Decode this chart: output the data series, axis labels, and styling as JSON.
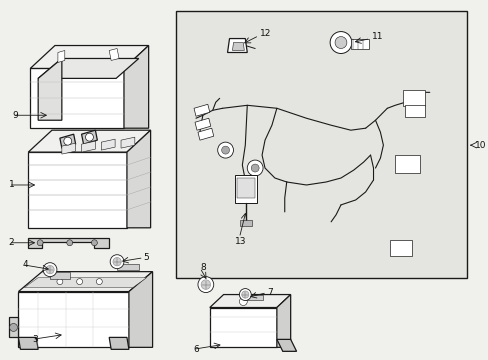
{
  "bg_color": "#f0f0ec",
  "line_color": "#1a1a1a",
  "label_color": "#111111",
  "box_bg": "#e8e8e4",
  "inner_box_bg": "#e4e4e0",
  "white": "#ffffff",
  "fig_width": 4.89,
  "fig_height": 3.6,
  "dpi": 100,
  "lw_main": 0.9,
  "lw_thin": 0.5,
  "label_fs": 6.5,
  "arrow_lw": 0.6
}
